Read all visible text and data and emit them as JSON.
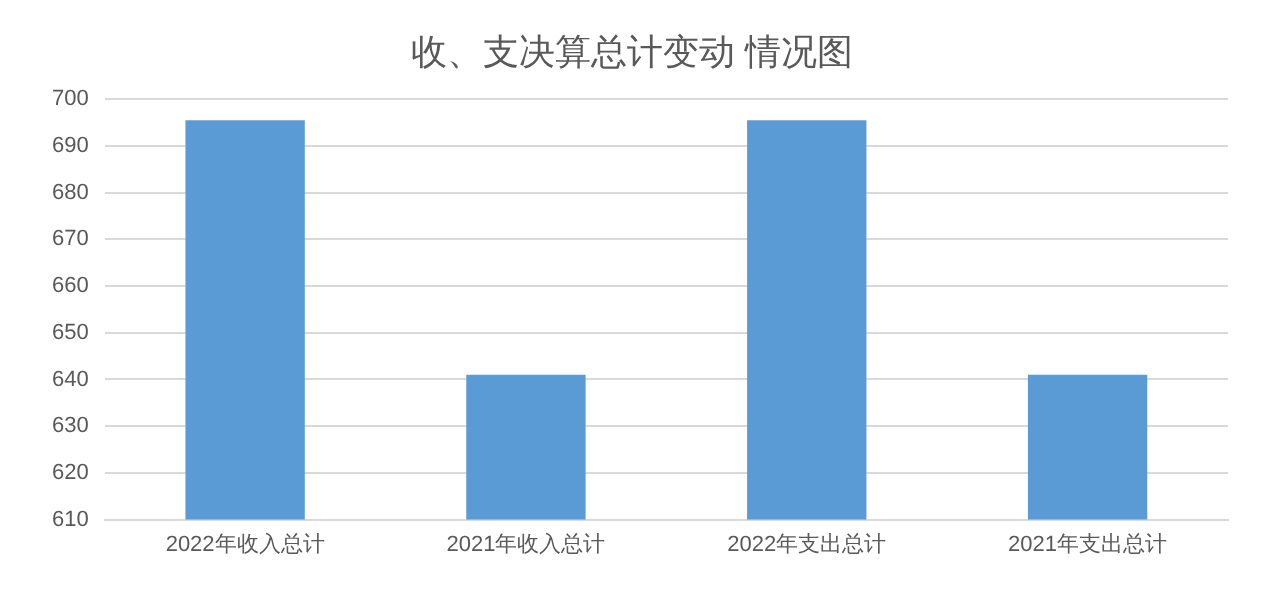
{
  "chart_data": {
    "type": "bar",
    "title": "收、支决算总计变动 情况图",
    "categories": [
      "2022年收入总计",
      "2021年收入总计",
      "2022年支出总计",
      "2021年支出总计"
    ],
    "values": [
      695.5,
      641,
      695.5,
      641
    ],
    "color": "#5b9bd5",
    "ylim": [
      610,
      700
    ],
    "yticks": [
      610,
      620,
      630,
      640,
      650,
      660,
      670,
      680,
      690,
      700
    ],
    "grid": "y",
    "legend": false
  }
}
